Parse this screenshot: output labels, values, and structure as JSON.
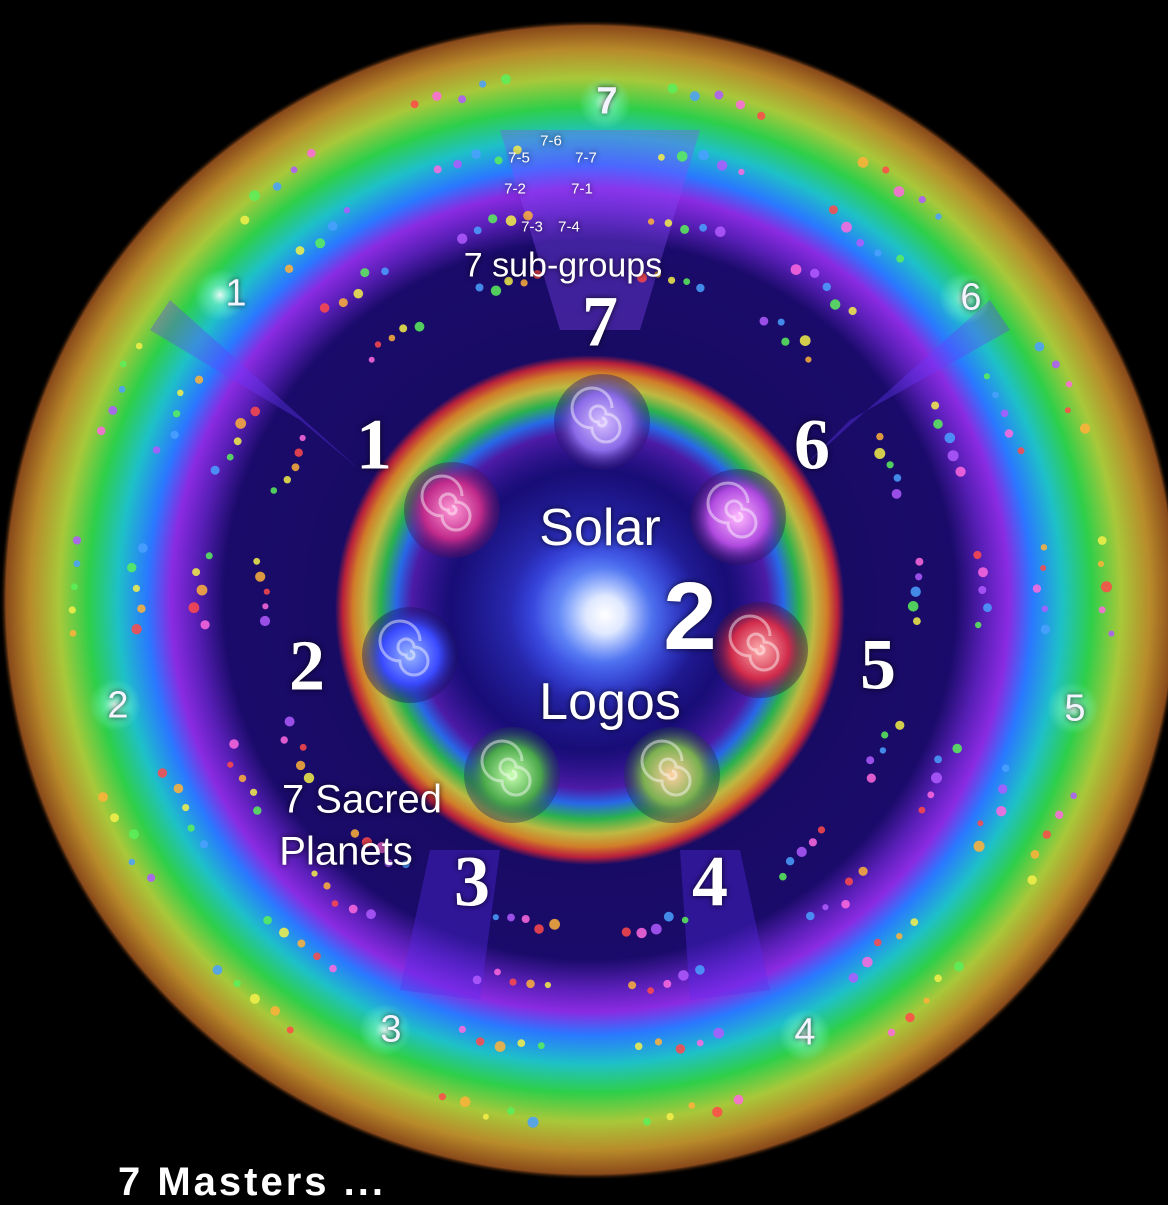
{
  "center": {
    "title_top": "Solar",
    "title_bottom": "Logos",
    "ray": "2"
  },
  "inner_ring": {
    "label": "7 Sacred Planets",
    "label_line1": "7 Sacred",
    "label_line2": "Planets",
    "numbers": [
      "1",
      "2",
      "3",
      "4",
      "5",
      "6",
      "7"
    ]
  },
  "outer_ring": {
    "label": "7 sub-groups",
    "numbers": [
      "1",
      "2",
      "3",
      "4",
      "5",
      "6",
      "7"
    ],
    "subgroup_codes": [
      "7-6",
      "7-5",
      "7-7",
      "7-2",
      "7-1",
      "7-3",
      "7-4"
    ]
  },
  "caption": "7 Masters  ...",
  "colors": {
    "background": "#000000",
    "core_glow": "#ffffff",
    "core_blue": "#3b4bff",
    "ring_red": "#ff2a2a",
    "ring_orange": "#ff9a1a",
    "ring_yellow": "#e8e43a",
    "ring_green": "#2ecf4a",
    "ring_blue": "#2a78ff",
    "ring_violet": "#8a2be2",
    "deep_space": "#12084a"
  }
}
